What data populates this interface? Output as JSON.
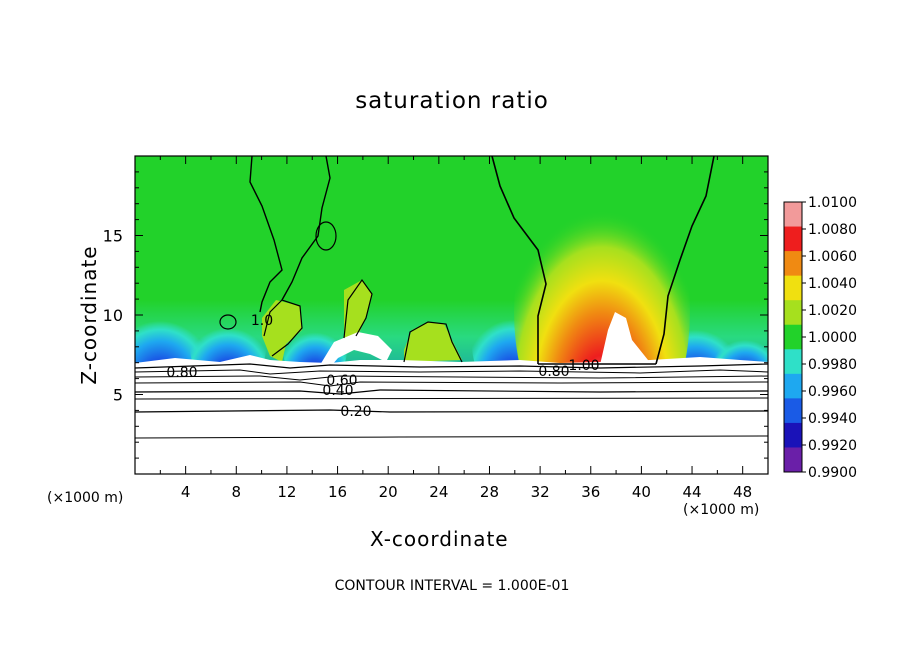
{
  "chart_data": {
    "type": "heatmap",
    "title": "saturation ratio",
    "xlabel": "X-coordinate",
    "ylabel": "Z-coordinate",
    "x_unit_label": "(×1000 m)",
    "xlim": [
      0,
      50
    ],
    "ylim": [
      0,
      20
    ],
    "x_ticks": [
      "4",
      "8",
      "12",
      "16",
      "20",
      "24",
      "28",
      "32",
      "36",
      "40",
      "44",
      "48"
    ],
    "y_ticks": [
      "5",
      "10",
      "15"
    ],
    "colorbar": {
      "ticks": [
        "0.9900",
        "0.9920",
        "0.9940",
        "0.9960",
        "0.9980",
        "1.0000",
        "1.0020",
        "1.0040",
        "1.0060",
        "1.0080",
        "1.0100"
      ],
      "colors": [
        "#6a1fa8",
        "#1a12b8",
        "#1a5be6",
        "#1ea8f0",
        "#2fe0c8",
        "#22d22a",
        "#a6e01e",
        "#f0e010",
        "#f08a12",
        "#ee1e1e",
        "#f29a9a"
      ]
    },
    "contour_labels": [
      "0.80",
      "0.60",
      "0.40",
      "0.20",
      "0.80",
      "1.00",
      "1.0"
    ],
    "footer": "CONTOUR INTERVAL = 1.000E-01"
  }
}
